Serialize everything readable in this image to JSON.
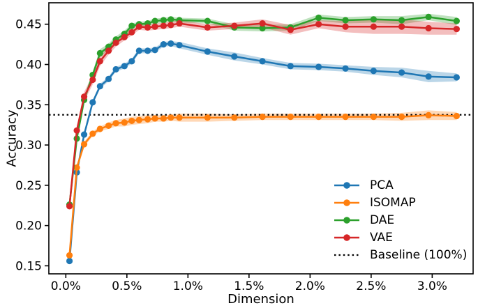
{
  "chart_data": {
    "type": "line",
    "title": "",
    "xlabel": "Dimension",
    "ylabel": "Accuracy",
    "xlim": [
      -0.139,
      3.335
    ],
    "ylim": [
      0.14,
      0.4766
    ],
    "grid": false,
    "legend_position": "lower right",
    "legend_frame": false,
    "xticks": [
      0.0,
      0.5,
      1.0,
      1.5,
      2.0,
      2.5,
      3.0
    ],
    "xtick_labels": [
      "0.0%",
      "0.5%",
      "1.0%",
      "1.5%",
      "2.0%",
      "2.5%",
      "3.0%"
    ],
    "yticks": [
      0.15,
      0.2,
      0.25,
      0.3,
      0.35,
      0.4,
      0.45
    ],
    "ytick_labels": [
      "0.15",
      "0.20",
      "0.25",
      "0.30",
      "0.35",
      "0.40",
      "0.45"
    ],
    "baseline": {
      "label": "Baseline (100%)",
      "value": 0.3375,
      "color": "#000000",
      "style": "dotted"
    },
    "x": [
      0.03,
      0.09,
      0.15,
      0.22,
      0.28,
      0.35,
      0.41,
      0.48,
      0.54,
      0.6,
      0.67,
      0.73,
      0.8,
      0.86,
      0.93,
      1.16,
      1.38,
      1.61,
      1.84,
      2.07,
      2.29,
      2.52,
      2.75,
      2.97,
      3.2
    ],
    "series": [
      {
        "name": "PCA",
        "color": "#1f77b4",
        "values": [
          0.156,
          0.266,
          0.313,
          0.353,
          0.373,
          0.382,
          0.394,
          0.398,
          0.404,
          0.417,
          0.417,
          0.418,
          0.425,
          0.426,
          0.424,
          0.416,
          0.41,
          0.404,
          0.398,
          0.397,
          0.395,
          0.392,
          0.39,
          0.385,
          0.384
        ],
        "band": [
          0.002,
          0.003,
          0.003,
          0.003,
          0.003,
          0.003,
          0.003,
          0.003,
          0.003,
          0.003,
          0.003,
          0.003,
          0.003,
          0.003,
          0.004,
          0.004,
          0.005,
          0.004,
          0.004,
          0.004,
          0.004,
          0.005,
          0.006,
          0.007,
          0.005
        ]
      },
      {
        "name": "ISOMAP",
        "color": "#ff7f0e",
        "values": [
          0.163,
          0.272,
          0.301,
          0.314,
          0.32,
          0.324,
          0.327,
          0.328,
          0.33,
          0.331,
          0.332,
          0.333,
          0.333,
          0.334,
          0.334,
          0.334,
          0.334,
          0.335,
          0.335,
          0.335,
          0.335,
          0.335,
          0.335,
          0.337,
          0.336
        ],
        "band": [
          0.002,
          0.003,
          0.003,
          0.003,
          0.003,
          0.004,
          0.004,
          0.005,
          0.005,
          0.005,
          0.005,
          0.004,
          0.004,
          0.004,
          0.005,
          0.005,
          0.004,
          0.004,
          0.004,
          0.004,
          0.004,
          0.004,
          0.005,
          0.006,
          0.005
        ]
      },
      {
        "name": "DAE",
        "color": "#2ca02c",
        "values": [
          0.226,
          0.308,
          0.356,
          0.387,
          0.414,
          0.422,
          0.431,
          0.438,
          0.448,
          0.45,
          0.451,
          0.454,
          0.455,
          0.456,
          0.455,
          0.454,
          0.446,
          0.445,
          0.446,
          0.458,
          0.455,
          0.456,
          0.455,
          0.459,
          0.454
        ],
        "band": [
          0.002,
          0.003,
          0.003,
          0.004,
          0.005,
          0.004,
          0.004,
          0.004,
          0.003,
          0.003,
          0.003,
          0.003,
          0.003,
          0.003,
          0.003,
          0.003,
          0.004,
          0.004,
          0.004,
          0.004,
          0.004,
          0.004,
          0.005,
          0.004,
          0.005
        ]
      },
      {
        "name": "VAE",
        "color": "#d62728",
        "values": [
          0.224,
          0.318,
          0.36,
          0.381,
          0.404,
          0.417,
          0.427,
          0.434,
          0.44,
          0.447,
          0.446,
          0.447,
          0.448,
          0.449,
          0.451,
          0.446,
          0.448,
          0.451,
          0.443,
          0.45,
          0.447,
          0.447,
          0.447,
          0.445,
          0.444
        ],
        "band": [
          0.003,
          0.005,
          0.006,
          0.006,
          0.006,
          0.005,
          0.005,
          0.004,
          0.004,
          0.004,
          0.004,
          0.004,
          0.004,
          0.004,
          0.004,
          0.004,
          0.004,
          0.005,
          0.006,
          0.005,
          0.007,
          0.009,
          0.009,
          0.008,
          0.007
        ]
      }
    ]
  }
}
